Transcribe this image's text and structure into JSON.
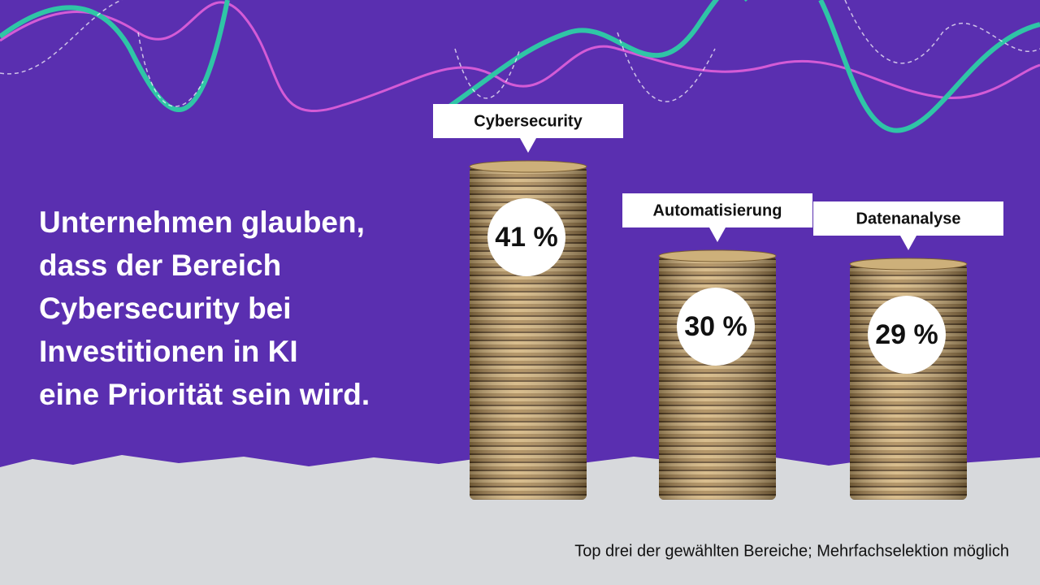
{
  "chart_data": {
    "type": "bar",
    "title": [
      "Unternehmen glauben,",
      "dass der Bereich",
      "Cybersecurity bei",
      "Investitionen in KI",
      "eine Priorität sein wird."
    ],
    "categories": [
      "Cybersecurity",
      "Automatisierung",
      "Datenanalyse"
    ],
    "values": [
      41,
      30,
      29
    ],
    "value_labels": [
      "41 %",
      "30 %",
      "29 %"
    ],
    "note": "Top drei der gewählten Bereiche; Mehrfachselektion möglich"
  }
}
